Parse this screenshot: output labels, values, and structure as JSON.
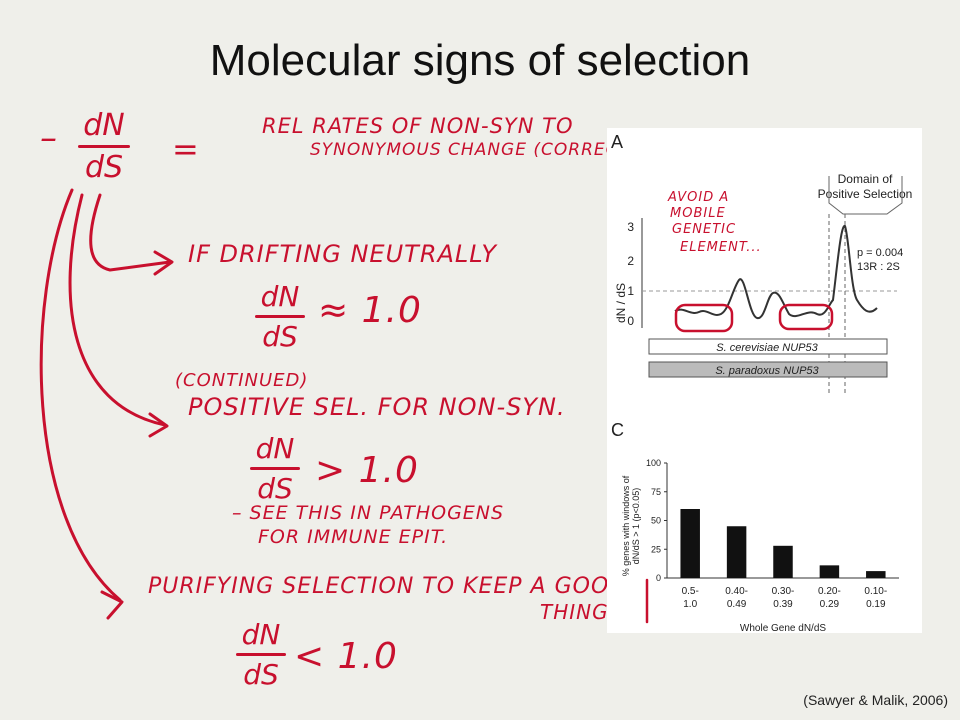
{
  "title": "Molecular signs of selection",
  "citation": "(Sawyer & Malik, 2006)",
  "notes": {
    "top_fraction": {
      "num": "dN",
      "den": "dS"
    },
    "leading_dash": "–",
    "equals": "=",
    "definition_line1": "REL RATES OF NON-SYN TO",
    "definition_line2": "SYNONYMOUS CHANGE (CORRECTED BY # POSSIBLE)",
    "neutral_text": "IF DRIFTING NEUTRALLY",
    "neutral_fraction": {
      "num": "dN",
      "den": "dS"
    },
    "neutral_value": "≈ 1.0",
    "continued": "(CONTINUED)",
    "positive_text": "POSITIVE SEL. FOR NON-SYN.",
    "positive_fraction": {
      "num": "dN",
      "den": "dS"
    },
    "positive_value": "> 1.0",
    "pathogen_line1": "– SEE THIS IN PATHOGENS",
    "pathogen_line2": "FOR IMMUNE EPIT.",
    "purifying_text": "PURIFYING SELECTION TO KEEP A GOOD",
    "purifying_text2": "THING",
    "purifying_fraction": {
      "num": "dN",
      "den": "dS"
    },
    "purifying_value": "< 1.0",
    "mobile_line1": "AVOID A",
    "mobile_line2": "MOBILE",
    "mobile_line3": "GENETIC",
    "mobile_line4": "ELEMENT..."
  },
  "figure": {
    "panel_a": {
      "label": "A",
      "domain_line1": "Domain of",
      "domain_line2": "Positive Selection",
      "ylabel": "dN / dS",
      "yticks": [
        "3",
        "2",
        "1",
        "0"
      ],
      "stat1": "p = 0.004",
      "stat2": "13R : 2S",
      "bar1": "S. cerevisiae NUP53",
      "bar2": "S. paradoxus NUP53"
    },
    "panel_c": {
      "label": "C",
      "xlabel": "Whole Gene dN/dS",
      "ylabel_line1": "% genes with windows of",
      "ylabel_line2": "dN/dS > 1 (p<0.05)",
      "yticks": [
        "100",
        "75",
        "50",
        "25",
        "0"
      ],
      "categories": [
        {
          "top": "0.5-",
          "bottom": "1.0"
        },
        {
          "top": "0.40-",
          "bottom": "0.49"
        },
        {
          "top": "0.30-",
          "bottom": "0.39"
        },
        {
          "top": "0.20-",
          "bottom": "0.29"
        },
        {
          "top": "0.10-",
          "bottom": "0.19"
        }
      ]
    }
  },
  "chart_data": {
    "type": "bar",
    "categories": [
      "0.5-1.0",
      "0.40-0.49",
      "0.30-0.39",
      "0.20-0.29",
      "0.10-0.19"
    ],
    "values": [
      60,
      45,
      28,
      11,
      6
    ],
    "xlabel": "Whole Gene dN/dS",
    "ylabel": "% genes with windows of dN/dS > 1 (p<0.05)",
    "ylim": [
      0,
      100
    ]
  }
}
